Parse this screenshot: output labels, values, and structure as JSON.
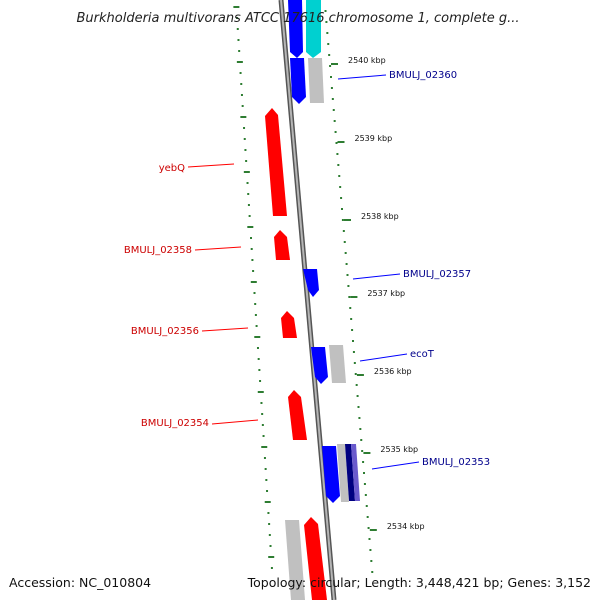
{
  "title": "Burkholderia multivorans ATCC 17616 chromosome 1, complete g...",
  "footer": {
    "accession": "Accession: NC_010804",
    "summary": "Topology: circular; Length: 3,448,421 bp; Genes: 3,152"
  },
  "colors": {
    "forward": "#0000ff",
    "reverse": "#ff0000",
    "other": "#c0c0c0",
    "trna": "#00d0d0",
    "dark": "#000080",
    "backbone": "#8a8a8a",
    "gc_dots": "#2e7d32"
  },
  "ticks": [
    {
      "label": "2540 kbp"
    },
    {
      "label": "2539 kbp"
    },
    {
      "label": "2538 kbp"
    },
    {
      "label": "2537 kbp"
    },
    {
      "label": "2536 kbp"
    },
    {
      "label": "2535 kbp"
    },
    {
      "label": "2534 kbp"
    }
  ],
  "genes_forward": [
    {
      "label": "BMULJ_02360",
      "color": "#0000ff"
    },
    {
      "label": "BMULJ_02357",
      "color": "#0000ff"
    },
    {
      "label": "ecoT",
      "color": "#0000ff"
    },
    {
      "label": "BMULJ_02353",
      "color": "#0000ff"
    }
  ],
  "genes_reverse": [
    {
      "label": "yebQ",
      "color": "#ff0000"
    },
    {
      "label": "BMULJ_02358",
      "color": "#ff0000"
    },
    {
      "label": "BMULJ_02356",
      "color": "#ff0000"
    },
    {
      "label": "BMULJ_02354",
      "color": "#ff0000"
    }
  ]
}
